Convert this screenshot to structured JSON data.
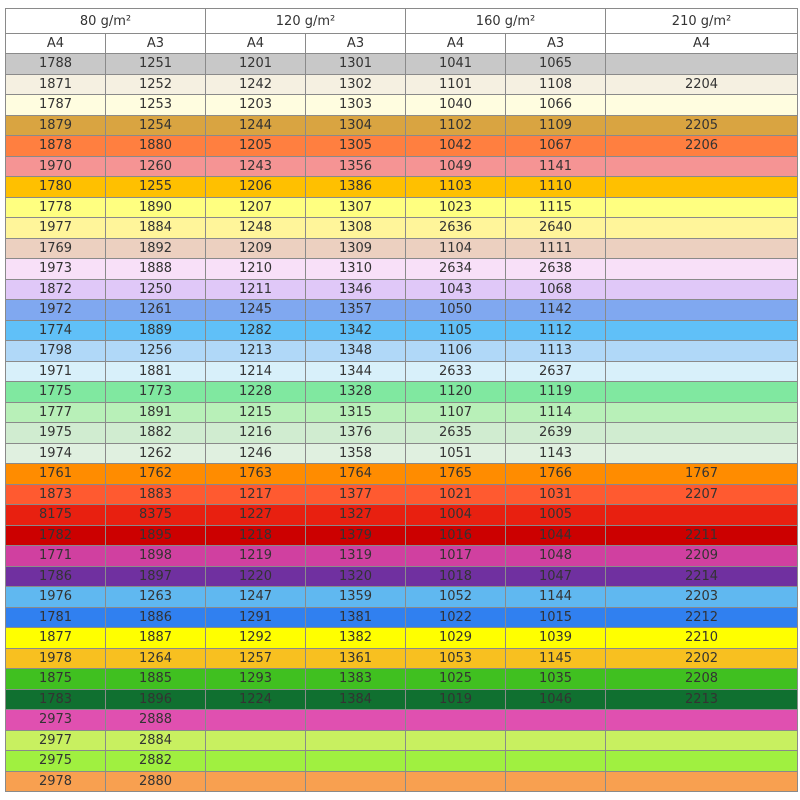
{
  "table": {
    "headers": [
      "80 g/m²",
      "120 g/m²",
      "160 g/m²",
      "210 g/m²"
    ],
    "subheaders": [
      "A4",
      "A3",
      "A4",
      "A3",
      "A4",
      "A3",
      "A4"
    ],
    "rows": [
      {
        "color": "#c8c8c8",
        "cells": [
          1788,
          1251,
          1201,
          1301,
          1041,
          1065,
          null
        ]
      },
      {
        "color": "#f5f0e1",
        "cells": [
          1871,
          1252,
          1242,
          1302,
          1101,
          1108,
          2204
        ]
      },
      {
        "color": "#fffde0",
        "cells": [
          1787,
          1253,
          1203,
          1303,
          1040,
          1066,
          null
        ]
      },
      {
        "color": "#d9a441",
        "cells": [
          1879,
          1254,
          1244,
          1304,
          1102,
          1109,
          2205
        ]
      },
      {
        "color": "#ff7f40",
        "cells": [
          1878,
          1880,
          1205,
          1305,
          1042,
          1067,
          2206
        ]
      },
      {
        "color": "#f59494",
        "cells": [
          1970,
          1260,
          1243,
          1356,
          1049,
          1141,
          null
        ]
      },
      {
        "color": "#ffc000",
        "cells": [
          1780,
          1255,
          1206,
          1386,
          1103,
          1110,
          null
        ]
      },
      {
        "color": "#ffff80",
        "cells": [
          1778,
          1890,
          1207,
          1307,
          1023,
          1115,
          null
        ]
      },
      {
        "color": "#fff59a",
        "cells": [
          1977,
          1884,
          1248,
          1308,
          2636,
          2640,
          null
        ]
      },
      {
        "color": "#ecd0c0",
        "cells": [
          1769,
          1892,
          1209,
          1309,
          1104,
          1111,
          null
        ]
      },
      {
        "color": "#f8e0f8",
        "cells": [
          1973,
          1888,
          1210,
          1310,
          2634,
          2638,
          null
        ]
      },
      {
        "color": "#e0c8f8",
        "cells": [
          1872,
          1250,
          1211,
          1346,
          1043,
          1068,
          null
        ]
      },
      {
        "color": "#80a8f0",
        "cells": [
          1972,
          1261,
          1245,
          1357,
          1050,
          1142,
          null
        ]
      },
      {
        "color": "#60c0f8",
        "cells": [
          1774,
          1889,
          1282,
          1342,
          1105,
          1112,
          null
        ]
      },
      {
        "color": "#b0d8f8",
        "cells": [
          1798,
          1256,
          1213,
          1348,
          1106,
          1113,
          null
        ]
      },
      {
        "color": "#d8f0fa",
        "cells": [
          1971,
          1881,
          1214,
          1344,
          2633,
          2637,
          null
        ]
      },
      {
        "color": "#80e8a0",
        "cells": [
          1775,
          1773,
          1228,
          1328,
          1120,
          1119,
          null
        ]
      },
      {
        "color": "#b8f0b8",
        "cells": [
          1777,
          1891,
          1215,
          1315,
          1107,
          1114,
          null
        ]
      },
      {
        "color": "#d0ecd0",
        "cells": [
          1975,
          1882,
          1216,
          1376,
          2635,
          2639,
          null
        ]
      },
      {
        "color": "#e0f0e0",
        "cells": [
          1974,
          1262,
          1246,
          1358,
          1051,
          1143,
          null
        ]
      },
      {
        "color": "#ff8c00",
        "cells": [
          1761,
          1762,
          1763,
          1764,
          1765,
          1766,
          1767
        ]
      },
      {
        "color": "#ff5a30",
        "cells": [
          1873,
          1883,
          1217,
          1377,
          1021,
          1031,
          2207
        ]
      },
      {
        "color": "#e82010",
        "cells": [
          8175,
          8375,
          1227,
          1327,
          1004,
          1005,
          null
        ]
      },
      {
        "color": "#cc0000",
        "cells": [
          1782,
          1895,
          1218,
          1379,
          1016,
          1044,
          2211
        ]
      },
      {
        "color": "#d040a0",
        "cells": [
          1771,
          1898,
          1219,
          1319,
          1017,
          1048,
          2209
        ]
      },
      {
        "color": "#7030a0",
        "cells": [
          1786,
          1897,
          1220,
          1320,
          1018,
          1047,
          2214
        ]
      },
      {
        "color": "#60b8f0",
        "cells": [
          1976,
          1263,
          1247,
          1359,
          1052,
          1144,
          2203
        ]
      },
      {
        "color": "#3080f0",
        "cells": [
          1781,
          1886,
          1291,
          1381,
          1022,
          1015,
          2212
        ]
      },
      {
        "color": "#ffff00",
        "cells": [
          1877,
          1887,
          1292,
          1382,
          1029,
          1039,
          2210
        ]
      },
      {
        "color": "#f8c020",
        "cells": [
          1978,
          1264,
          1257,
          1361,
          1053,
          1145,
          2202
        ]
      },
      {
        "color": "#40c020",
        "cells": [
          1875,
          1885,
          1293,
          1383,
          1025,
          1035,
          2208
        ]
      },
      {
        "color": "#107030",
        "cells": [
          1783,
          1896,
          1224,
          1384,
          1019,
          1046,
          2213
        ]
      },
      {
        "color": "#e050b0",
        "cells": [
          2973,
          2888,
          null,
          null,
          null,
          null,
          null
        ]
      },
      {
        "color": "#c8f060",
        "cells": [
          2977,
          2884,
          null,
          null,
          null,
          null,
          null
        ]
      },
      {
        "color": "#a0f040",
        "cells": [
          2975,
          2882,
          null,
          null,
          null,
          null,
          null
        ]
      },
      {
        "color": "#f8a050",
        "cells": [
          2978,
          2880,
          null,
          null,
          null,
          null,
          null
        ]
      }
    ]
  }
}
